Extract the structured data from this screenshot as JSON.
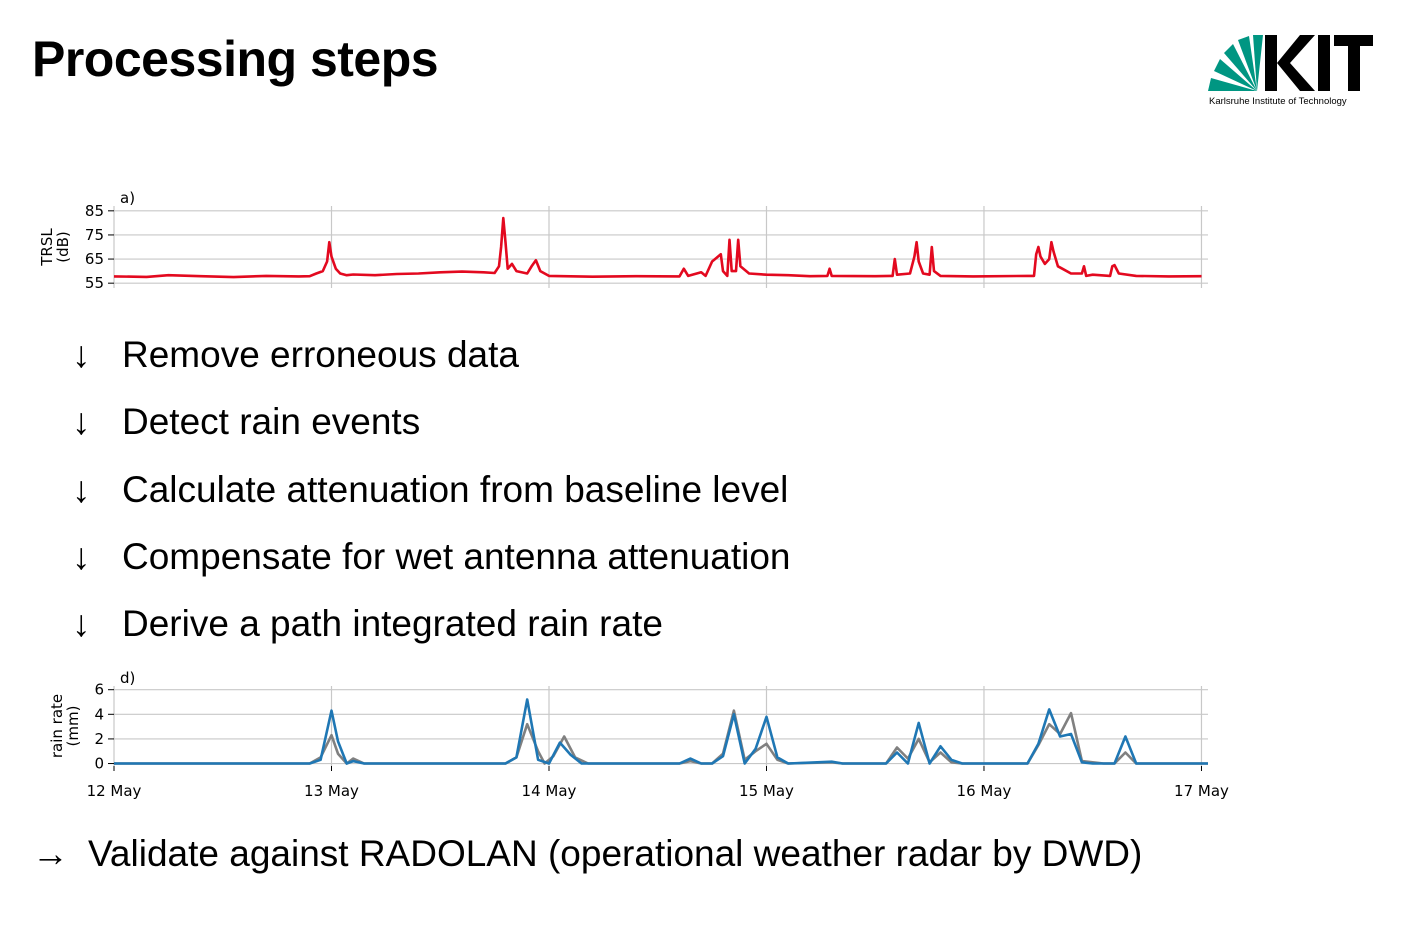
{
  "title": "Processing steps",
  "logo": {
    "wordmark": "KIT",
    "subtitle": "Karlsruhe Institute of Technology",
    "color": "#009682"
  },
  "steps": [
    {
      "arrow": "↓",
      "text": "Remove erroneous data"
    },
    {
      "arrow": "↓",
      "text": "Detect rain events"
    },
    {
      "arrow": "↓",
      "text": "Calculate attenuation from baseline level"
    },
    {
      "arrow": "↓",
      "text": "Compensate for wet antenna attenuation"
    },
    {
      "arrow": "↓",
      "text": "Derive a path integrated rain rate"
    }
  ],
  "final": {
    "arrow": "→",
    "text": "Validate against RADOLAN (operational weather radar by DWD)"
  },
  "chart_data": [
    {
      "type": "line",
      "panel_label": "a)",
      "ylabel": [
        "TRSL",
        "(dB)"
      ],
      "yticks": [
        55,
        65,
        75,
        85
      ],
      "ylim": [
        53,
        87
      ],
      "xlim": [
        12,
        17.03
      ],
      "grid": true,
      "series": [
        {
          "color": "#e3091f",
          "points": [
            [
              12.0,
              57.8
            ],
            [
              12.15,
              57.6
            ],
            [
              12.25,
              58.3
            ],
            [
              12.4,
              57.9
            ],
            [
              12.55,
              57.5
            ],
            [
              12.7,
              58.0
            ],
            [
              12.85,
              57.8
            ],
            [
              12.9,
              57.9
            ],
            [
              12.93,
              59.0
            ],
            [
              12.96,
              60.0
            ],
            [
              12.98,
              64.0
            ],
            [
              12.99,
              72.0
            ],
            [
              13.0,
              66.0
            ],
            [
              13.02,
              61.0
            ],
            [
              13.04,
              59.0
            ],
            [
              13.07,
              58.3
            ],
            [
              13.1,
              58.6
            ],
            [
              13.2,
              58.3
            ],
            [
              13.3,
              58.8
            ],
            [
              13.4,
              59.0
            ],
            [
              13.5,
              59.5
            ],
            [
              13.6,
              59.8
            ],
            [
              13.7,
              59.5
            ],
            [
              13.75,
              59.2
            ],
            [
              13.77,
              62.0
            ],
            [
              13.78,
              70.0
            ],
            [
              13.79,
              82.0
            ],
            [
              13.8,
              72.0
            ],
            [
              13.81,
              61.0
            ],
            [
              13.83,
              63.0
            ],
            [
              13.85,
              60.0
            ],
            [
              13.9,
              59.0
            ],
            [
              13.92,
              62.0
            ],
            [
              13.94,
              64.5
            ],
            [
              13.96,
              60.0
            ],
            [
              14.0,
              58.0
            ],
            [
              14.2,
              57.7
            ],
            [
              14.4,
              57.9
            ],
            [
              14.6,
              57.8
            ],
            [
              14.62,
              61.0
            ],
            [
              14.64,
              58.0
            ],
            [
              14.7,
              59.5
            ],
            [
              14.72,
              58.0
            ],
            [
              14.75,
              64.0
            ],
            [
              14.77,
              65.5
            ],
            [
              14.79,
              67.0
            ],
            [
              14.8,
              60.0
            ],
            [
              14.82,
              58.0
            ],
            [
              14.83,
              73.0
            ],
            [
              14.84,
              60.0
            ],
            [
              14.86,
              60.0
            ],
            [
              14.87,
              73.0
            ],
            [
              14.88,
              62.0
            ],
            [
              14.92,
              59.0
            ],
            [
              15.0,
              58.5
            ],
            [
              15.1,
              58.3
            ],
            [
              15.2,
              57.9
            ],
            [
              15.28,
              58.0
            ],
            [
              15.29,
              61.0
            ],
            [
              15.3,
              58.0
            ],
            [
              15.5,
              57.9
            ],
            [
              15.58,
              58.0
            ],
            [
              15.59,
              65.0
            ],
            [
              15.6,
              58.5
            ],
            [
              15.66,
              59.0
            ],
            [
              15.68,
              66.0
            ],
            [
              15.69,
              72.0
            ],
            [
              15.7,
              64.0
            ],
            [
              15.72,
              59.0
            ],
            [
              15.75,
              58.5
            ],
            [
              15.76,
              70.0
            ],
            [
              15.77,
              60.0
            ],
            [
              15.8,
              58.0
            ],
            [
              15.95,
              57.8
            ],
            [
              16.2,
              58.0
            ],
            [
              16.23,
              58.0
            ],
            [
              16.24,
              67.0
            ],
            [
              16.25,
              70.0
            ],
            [
              16.26,
              66.0
            ],
            [
              16.28,
              63.0
            ],
            [
              16.3,
              65.0
            ],
            [
              16.31,
              72.0
            ],
            [
              16.32,
              68.0
            ],
            [
              16.34,
              62.0
            ],
            [
              16.36,
              61.0
            ],
            [
              16.4,
              59.0
            ],
            [
              16.45,
              59.0
            ],
            [
              16.46,
              62.0
            ],
            [
              16.47,
              58.0
            ],
            [
              16.5,
              58.5
            ],
            [
              16.58,
              58.0
            ],
            [
              16.59,
              62.0
            ],
            [
              16.6,
              62.5
            ],
            [
              16.62,
              59.0
            ],
            [
              16.7,
              58.0
            ],
            [
              16.85,
              57.8
            ],
            [
              17.0,
              57.9
            ]
          ]
        }
      ]
    },
    {
      "type": "line",
      "panel_label": "d)",
      "ylabel": [
        "rain rate",
        "(mm)"
      ],
      "yticks": [
        0,
        2,
        4,
        6
      ],
      "ylim": [
        -0.2,
        6.3
      ],
      "xlim": [
        12,
        17.03
      ],
      "xticks": [
        "12 May",
        "13 May",
        "14 May",
        "15 May",
        "16 May",
        "17 May"
      ],
      "grid": true,
      "series": [
        {
          "color": "#808080",
          "points": [
            [
              12.0,
              0.0
            ],
            [
              12.9,
              0.0
            ],
            [
              12.95,
              0.5
            ],
            [
              13.0,
              2.3
            ],
            [
              13.03,
              0.8
            ],
            [
              13.07,
              0.0
            ],
            [
              13.1,
              0.4
            ],
            [
              13.15,
              0.0
            ],
            [
              13.8,
              0.0
            ],
            [
              13.85,
              0.5
            ],
            [
              13.9,
              3.2
            ],
            [
              13.95,
              1.0
            ],
            [
              13.98,
              0.0
            ],
            [
              14.02,
              0.6
            ],
            [
              14.07,
              2.2
            ],
            [
              14.12,
              0.5
            ],
            [
              14.18,
              0.0
            ],
            [
              14.6,
              0.0
            ],
            [
              14.65,
              0.2
            ],
            [
              14.7,
              0.0
            ],
            [
              14.75,
              0.0
            ],
            [
              14.8,
              0.8
            ],
            [
              14.85,
              4.3
            ],
            [
              14.9,
              0.3
            ],
            [
              14.95,
              1.0
            ],
            [
              15.0,
              1.6
            ],
            [
              15.05,
              0.3
            ],
            [
              15.1,
              0.0
            ],
            [
              15.3,
              0.1
            ],
            [
              15.35,
              0.0
            ],
            [
              15.55,
              0.0
            ],
            [
              15.6,
              1.3
            ],
            [
              15.65,
              0.4
            ],
            [
              15.7,
              2.0
            ],
            [
              15.75,
              0.1
            ],
            [
              15.8,
              0.9
            ],
            [
              15.85,
              0.1
            ],
            [
              15.9,
              0.0
            ],
            [
              16.2,
              0.0
            ],
            [
              16.25,
              1.5
            ],
            [
              16.3,
              3.2
            ],
            [
              16.35,
              2.4
            ],
            [
              16.4,
              4.1
            ],
            [
              16.45,
              0.2
            ],
            [
              16.5,
              0.1
            ],
            [
              16.55,
              0.0
            ],
            [
              16.6,
              0.0
            ],
            [
              16.65,
              0.9
            ],
            [
              16.7,
              0.0
            ],
            [
              17.03,
              0.0
            ]
          ]
        },
        {
          "color": "#1f77b4",
          "points": [
            [
              12.0,
              0.0
            ],
            [
              12.9,
              0.0
            ],
            [
              12.95,
              0.3
            ],
            [
              13.0,
              4.3
            ],
            [
              13.03,
              1.8
            ],
            [
              13.07,
              0.0
            ],
            [
              13.1,
              0.2
            ],
            [
              13.15,
              0.0
            ],
            [
              13.8,
              0.0
            ],
            [
              13.85,
              0.5
            ],
            [
              13.9,
              5.2
            ],
            [
              13.95,
              0.3
            ],
            [
              14.0,
              0.0
            ],
            [
              14.05,
              1.7
            ],
            [
              14.1,
              0.7
            ],
            [
              14.15,
              0.0
            ],
            [
              14.6,
              0.0
            ],
            [
              14.65,
              0.4
            ],
            [
              14.7,
              0.0
            ],
            [
              14.75,
              0.0
            ],
            [
              14.8,
              0.6
            ],
            [
              14.85,
              4.0
            ],
            [
              14.9,
              0.0
            ],
            [
              14.95,
              1.2
            ],
            [
              15.0,
              3.8
            ],
            [
              15.05,
              0.5
            ],
            [
              15.1,
              0.0
            ],
            [
              15.3,
              0.15
            ],
            [
              15.35,
              0.0
            ],
            [
              15.55,
              0.0
            ],
            [
              15.6,
              0.9
            ],
            [
              15.65,
              0.0
            ],
            [
              15.7,
              3.3
            ],
            [
              15.75,
              0.0
            ],
            [
              15.8,
              1.4
            ],
            [
              15.85,
              0.3
            ],
            [
              15.9,
              0.0
            ],
            [
              16.2,
              0.0
            ],
            [
              16.25,
              1.6
            ],
            [
              16.3,
              4.4
            ],
            [
              16.35,
              2.2
            ],
            [
              16.4,
              2.4
            ],
            [
              16.45,
              0.1
            ],
            [
              16.5,
              0.0
            ],
            [
              16.55,
              0.0
            ],
            [
              16.6,
              0.0
            ],
            [
              16.65,
              2.2
            ],
            [
              16.7,
              0.0
            ],
            [
              17.03,
              0.0
            ]
          ]
        }
      ]
    }
  ]
}
